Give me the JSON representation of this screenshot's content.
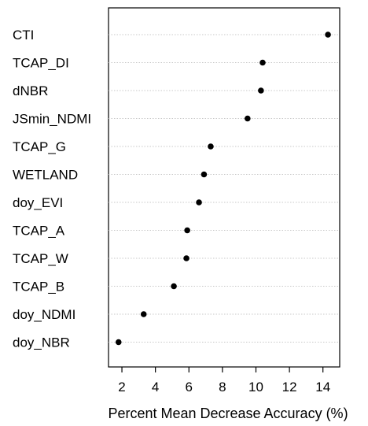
{
  "chart_data": {
    "type": "scatter",
    "xlabel": "Percent Mean Decrease Accuracy (%)",
    "ylabel": "",
    "xlim": [
      1.2,
      15.0
    ],
    "x_ticks": [
      2,
      4,
      6,
      8,
      10,
      12,
      14
    ],
    "grid": "horizontal dotted",
    "categories": [
      "CTI",
      "TCAP_DI",
      "dNBR",
      "JSmin_NDMI",
      "TCAP_G",
      "WETLAND",
      "doy_EVI",
      "TCAP_A",
      "TCAP_W",
      "TCAP_B",
      "doy_NDMI",
      "doy_NBR"
    ],
    "values": [
      14.3,
      10.4,
      10.3,
      9.5,
      7.3,
      6.9,
      6.6,
      5.9,
      5.85,
      5.1,
      3.3,
      1.8
    ],
    "point_color": "#000000",
    "grid_color": "#c8c8c8"
  }
}
